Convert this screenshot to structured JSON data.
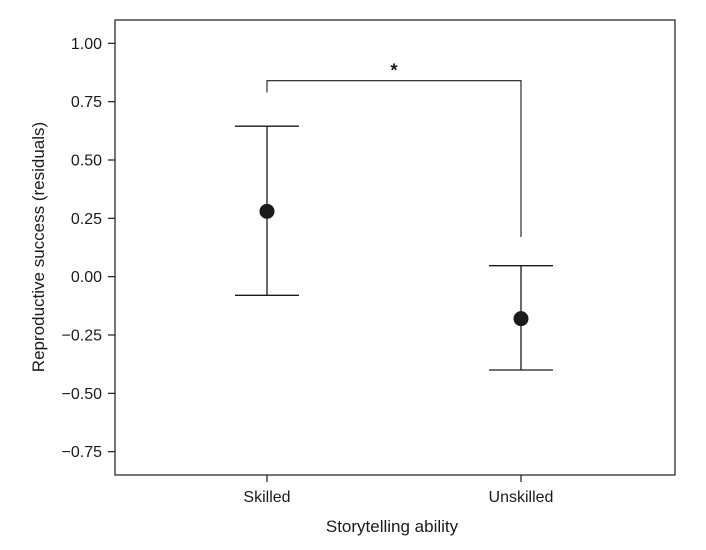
{
  "chart_data": {
    "type": "scatter",
    "xlabel": "Storytelling ability",
    "ylabel": "Reproductive success (residuals)",
    "categories": [
      "Skilled",
      "Unskilled"
    ],
    "values": [
      0.28,
      -0.18
    ],
    "ci_upper": [
      0.645,
      0.047
    ],
    "ci_lower": [
      -0.08,
      -0.4
    ],
    "ylim": [
      -0.85,
      1.1
    ],
    "yticks": [
      1.0,
      0.75,
      0.5,
      0.25,
      0.0,
      -0.25,
      -0.5,
      -0.75
    ],
    "ytick_labels": [
      "1.00",
      "0.75",
      "0.50",
      "0.25",
      "0.00",
      "−0.25",
      "−0.50",
      "−0.75"
    ],
    "grid": false,
    "significance": {
      "label": "*",
      "between": [
        "Skilled",
        "Unskilled"
      ],
      "bracket_y": 0.84,
      "left_drop_to": 0.79,
      "right_drop_to": 0.17
    }
  }
}
